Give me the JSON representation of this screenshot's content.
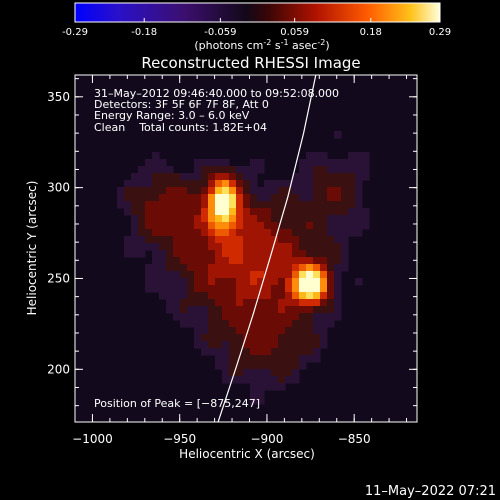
{
  "colorbar": {
    "min": -0.29,
    "max": 0.29,
    "ticks": [
      "-0.29",
      "-0.18",
      "-0.059",
      "0.059",
      "0.18",
      "0.29"
    ],
    "tick_values": [
      -0.29,
      -0.18,
      -0.059,
      0.059,
      0.18,
      0.29
    ],
    "units_parts": {
      "pre": "(photons cm",
      "exp1": "-2",
      "mid1": " s",
      "exp2": "-1",
      "mid2": " asec",
      "exp3": "-2",
      "post": ")"
    }
  },
  "chart_data": {
    "type": "heatmap",
    "title": "Reconstructed RHESSI Image",
    "xlabel": "Heliocentric X (arcsec)",
    "ylabel": "Heliocentric Y (arcsec)",
    "xlim": [
      -1010,
      -814
    ],
    "ylim": [
      171,
      362
    ],
    "xticks": [
      -1000,
      -950,
      -900,
      -850
    ],
    "xtick_labels": [
      "−1000",
      "−950",
      "−900",
      "−850"
    ],
    "yticks": [
      200,
      250,
      300,
      350
    ],
    "ytick_labels": [
      "200",
      "250",
      "300",
      "350"
    ],
    "info_lines": [
      "31–May–2012 09:46:40.000 to 09:52:08.000",
      "Detectors: 3F 5F 6F 7F 8F, Att 0",
      "Energy Range: 3.0 – 6.0 keV",
      "Clean    Total counts: 1.82E+04"
    ],
    "peak_label": "Position of Peak = [−875,247]",
    "peak_position": [
      -875,
      247
    ],
    "sources": [
      {
        "x": -875,
        "y": 247,
        "relative_intensity": 1.0
      },
      {
        "x": -925,
        "y": 292,
        "relative_intensity": 0.88
      }
    ],
    "limb_curve": {
      "x": [
        -928,
        -918,
        -908,
        -898,
        -888,
        -879,
        -872
      ],
      "y": [
        171,
        200,
        230,
        262,
        295,
        330,
        362
      ]
    },
    "colormap": [
      "#0000ff",
      "#3b0d8a",
      "#2a1650",
      "#000000",
      "#6b0a0a",
      "#d81c00",
      "#ff8c00",
      "#ffd21f",
      "#ffffe0"
    ]
  },
  "timestamp": "11–May–2022 07:21"
}
